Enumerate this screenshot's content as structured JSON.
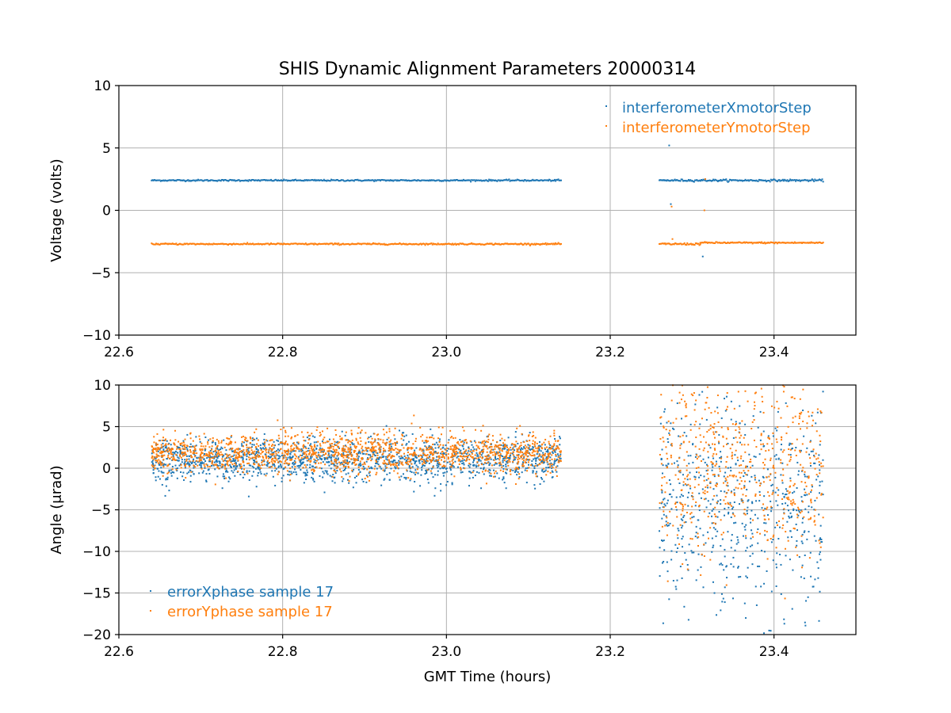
{
  "colors": {
    "series_x": "#1f77b4",
    "series_y": "#ff7f0e"
  },
  "chart_data": [
    {
      "type": "scatter",
      "title": "SHIS Dynamic Alignment Parameters 20000314",
      "xlabel": "",
      "ylabel": "Voltage (volts)",
      "xlim": [
        22.6,
        23.5
      ],
      "ylim": [
        -10,
        10
      ],
      "xticks": [
        "22.6",
        "22.8",
        "23.0",
        "23.2",
        "23.4"
      ],
      "yticks": [
        "10",
        "5",
        "0",
        "−5",
        "−10"
      ],
      "grid": true,
      "legend_position": "top-right",
      "series": [
        {
          "name": "interferometerXmotorStep",
          "color": "#1f77b4",
          "segments": [
            {
              "x_start": 22.64,
              "x_end": 23.14,
              "level": 2.4,
              "spread": 0.06
            },
            {
              "x_start": 23.26,
              "x_end": 23.46,
              "level": 2.4,
              "spread": 0.08
            }
          ],
          "outliers": [
            [
              23.272,
              5.2
            ],
            [
              23.274,
              0.5
            ],
            [
              23.313,
              -3.7
            ],
            [
              23.316,
              2.5
            ]
          ]
        },
        {
          "name": "interferometerYmotorStep",
          "color": "#ff7f0e",
          "segments": [
            {
              "x_start": 22.64,
              "x_end": 23.14,
              "level": -2.7,
              "spread": 0.06
            },
            {
              "x_start": 23.26,
              "x_end": 23.31,
              "level": -2.7,
              "spread": 0.08
            },
            {
              "x_start": 23.31,
              "x_end": 23.46,
              "level": -2.6,
              "spread": 0.06
            }
          ],
          "outliers": [
            [
              23.275,
              0.3
            ],
            [
              23.276,
              -2.3
            ],
            [
              23.315,
              0.0
            ],
            [
              23.316,
              2.5
            ]
          ]
        }
      ]
    },
    {
      "type": "scatter",
      "title": "",
      "xlabel": "GMT Time (hours)",
      "ylabel": "Angle (μrad)",
      "xlim": [
        22.6,
        23.5
      ],
      "ylim": [
        -20,
        10
      ],
      "xticks": [
        "22.6",
        "22.8",
        "23.0",
        "23.2",
        "23.4"
      ],
      "yticks": [
        "10",
        "5",
        "0",
        "−5",
        "−10",
        "−15",
        "−20"
      ],
      "grid": true,
      "legend_position": "bottom-left",
      "series": [
        {
          "name": "errorXphase sample 17",
          "color": "#1f77b4",
          "segments": [
            {
              "x_start": 22.64,
              "x_end": 23.14,
              "mean": 1.0,
              "std": 1.3
            },
            {
              "x_start": 23.26,
              "x_end": 23.46,
              "mean": -4.5,
              "std": 6.5
            }
          ]
        },
        {
          "name": "errorYphase sample 17",
          "color": "#ff7f0e",
          "segments": [
            {
              "x_start": 22.64,
              "x_end": 23.14,
              "mean": 1.8,
              "std": 1.2
            },
            {
              "x_start": 23.26,
              "x_end": 23.46,
              "mean": 0.5,
              "std": 5.5
            }
          ]
        }
      ]
    }
  ]
}
